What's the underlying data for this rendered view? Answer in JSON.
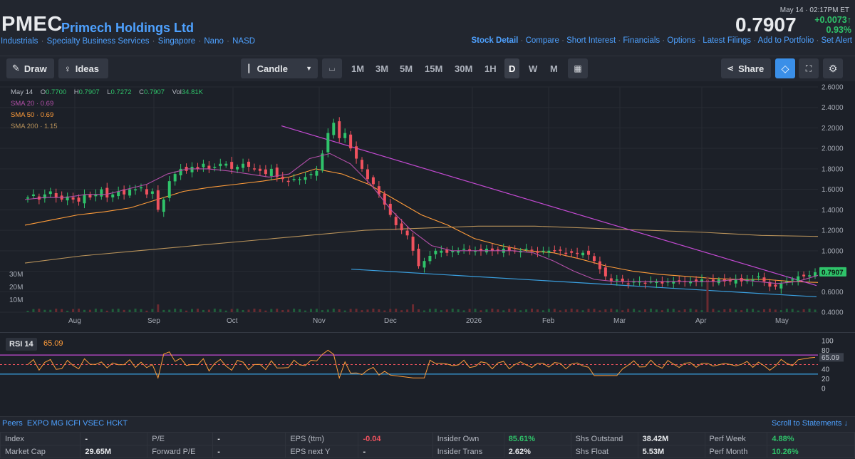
{
  "header": {
    "ticker": "PMEC",
    "company": "Primech Holdings Ltd",
    "breadcrumbs": [
      "Industrials",
      "Specialty Business Services",
      "Singapore",
      "Nano",
      "NASD"
    ],
    "datetime": "May 14 · 02:17PM ET",
    "price": "0.7907",
    "change_abs": "+0.0073",
    "change_pct": "0.93%",
    "nav_links": [
      "Stock Detail",
      "Compare",
      "Short Interest",
      "Financials",
      "Options",
      "Latest Filings",
      "Add to Portfolio",
      "Set Alert"
    ]
  },
  "toolbar": {
    "draw": "Draw",
    "ideas": "Ideas",
    "chart_type": "Candle",
    "timeframes": [
      "1M",
      "3M",
      "5M",
      "15M",
      "30M",
      "1H",
      "D",
      "W",
      "M"
    ],
    "active_timeframe": "D",
    "share": "Share"
  },
  "ohlc": {
    "date": "May 14",
    "o_label": "O",
    "o": "0.7700",
    "h_label": "H",
    "h": "0.7907",
    "l_label": "L",
    "l": "0.7272",
    "c_label": "C",
    "c": "0.7907",
    "vol_label": "Vol",
    "vol": "34.81K"
  },
  "sma": [
    {
      "label": "SMA 20",
      "value": "0.69",
      "color": "#b24fa8"
    },
    {
      "label": "SMA 50",
      "value": "0.69",
      "color": "#ff9c3a"
    },
    {
      "label": "SMA 200",
      "value": "1.15",
      "color": "#b8925a"
    }
  ],
  "chart_data": {
    "type": "candlestick",
    "x_ticks": [
      "Aug",
      "Sep",
      "Oct",
      "Nov",
      "Dec",
      "2026",
      "Feb",
      "Mar",
      "Apr",
      "May"
    ],
    "y_ticks": [
      "2.6000",
      "2.4000",
      "2.2000",
      "2.0000",
      "1.8000",
      "1.6000",
      "1.4000",
      "1.2000",
      "1.0000",
      "0.8000",
      "0.6000",
      "0.4000"
    ],
    "ylim": [
      0.4,
      2.6
    ],
    "volume_ticks": [
      "30M",
      "20M",
      "10M"
    ],
    "last_price_label": "0.7907",
    "close_path": [
      1.52,
      1.55,
      1.5,
      1.55,
      1.58,
      1.52,
      1.5,
      1.53,
      1.5,
      1.48,
      1.55,
      1.52,
      1.55,
      1.6,
      1.52,
      1.55,
      1.58,
      1.55,
      1.6,
      1.6,
      1.62,
      1.55,
      1.58,
      1.4,
      1.5,
      1.68,
      1.75,
      1.8,
      1.78,
      1.82,
      1.8,
      1.85,
      1.8,
      1.82,
      1.85,
      1.85,
      1.8,
      1.82,
      1.85,
      1.82,
      1.8,
      1.78,
      1.75,
      1.8,
      1.72,
      1.7,
      1.68,
      1.7,
      1.7,
      1.72,
      1.75,
      1.78,
      1.95,
      2.15,
      2.25,
      2.1,
      2.15,
      2.0,
      1.9,
      1.8,
      1.7,
      1.65,
      1.55,
      1.45,
      1.35,
      1.25,
      1.2,
      1.15,
      1.0,
      0.85,
      0.9,
      0.95,
      1.0,
      1.0,
      0.98,
      1.0,
      1.0,
      1.02,
      1.0,
      1.0,
      1.0,
      1.02,
      1.0,
      1.0,
      1.02,
      1.0,
      1.0,
      1.0,
      1.02,
      1.0,
      0.98,
      1.0,
      1.0,
      1.0,
      1.0,
      0.98,
      0.98,
      0.97,
      0.98,
      0.96,
      0.9,
      0.82,
      0.75,
      0.7,
      0.72,
      0.7,
      0.68,
      0.7,
      0.7,
      0.68,
      0.7,
      0.7,
      0.68,
      0.7,
      0.7,
      0.7,
      0.7,
      0.7,
      0.7,
      0.72,
      0.7,
      0.7,
      0.72,
      0.7,
      0.7,
      0.72,
      0.7,
      0.72,
      0.72,
      0.75,
      0.7,
      0.65,
      0.65,
      0.68,
      0.7,
      0.72,
      0.75,
      0.75,
      0.76,
      0.79
    ],
    "sma20_path": [
      1.5,
      1.52,
      1.52,
      1.55,
      1.55,
      1.6,
      1.65,
      1.75,
      1.8,
      1.8,
      1.78,
      1.75,
      1.72,
      1.75,
      1.9,
      1.95,
      1.85,
      1.65,
      1.4,
      1.2,
      1.05,
      1.0,
      1.0,
      1.0,
      1.0,
      0.98,
      0.9,
      0.8,
      0.72,
      0.7,
      0.7,
      0.7,
      0.7,
      0.7,
      0.7,
      0.72,
      0.7,
      0.68,
      0.7,
      0.76
    ],
    "sma50_path": [
      1.25,
      1.3,
      1.35,
      1.38,
      1.42,
      1.5,
      1.58,
      1.62,
      1.65,
      1.68,
      1.72,
      1.8,
      1.75,
      1.65,
      1.5,
      1.35,
      1.25,
      1.12,
      1.05,
      1.0,
      0.98,
      0.92,
      0.85,
      0.8,
      0.77,
      0.75,
      0.73,
      0.72,
      0.72,
      0.7,
      0.69
    ],
    "sma200_path": [
      0.88,
      0.95,
      1.0,
      1.05,
      1.1,
      1.15,
      1.2,
      1.22,
      1.24,
      1.24,
      1.22,
      1.2,
      1.18,
      1.15,
      1.14
    ],
    "rsi_ticks": [
      "100",
      "80",
      "65.09",
      "40",
      "20",
      "0"
    ],
    "rsi_levels": [
      70,
      30,
      50
    ],
    "rsi_last": 65.09
  },
  "rsi": {
    "label": "RSI 14",
    "value": "65.09"
  },
  "peers": {
    "label": "Peers",
    "list": "EXPO MG ICFI VSEC HCKT"
  },
  "scroll_label": "Scroll to Statements ↓",
  "fundamentals": [
    [
      [
        "Index",
        "-",
        ""
      ],
      [
        "P/E",
        "-",
        ""
      ],
      [
        "EPS (ttm)",
        "-0.04",
        "red"
      ],
      [
        "Insider Own",
        "85.61%",
        "green"
      ],
      [
        "Shs Outstand",
        "38.42M",
        ""
      ],
      [
        "Perf Week",
        "4.88%",
        "green"
      ]
    ],
    [
      [
        "Market Cap",
        "29.65M",
        ""
      ],
      [
        "Forward P/E",
        "-",
        ""
      ],
      [
        "EPS next Y",
        "-",
        ""
      ],
      [
        "Insider Trans",
        "2.62%",
        ""
      ],
      [
        "Shs Float",
        "5.53M",
        ""
      ],
      [
        "Perf Month",
        "10.26%",
        "green"
      ]
    ]
  ]
}
